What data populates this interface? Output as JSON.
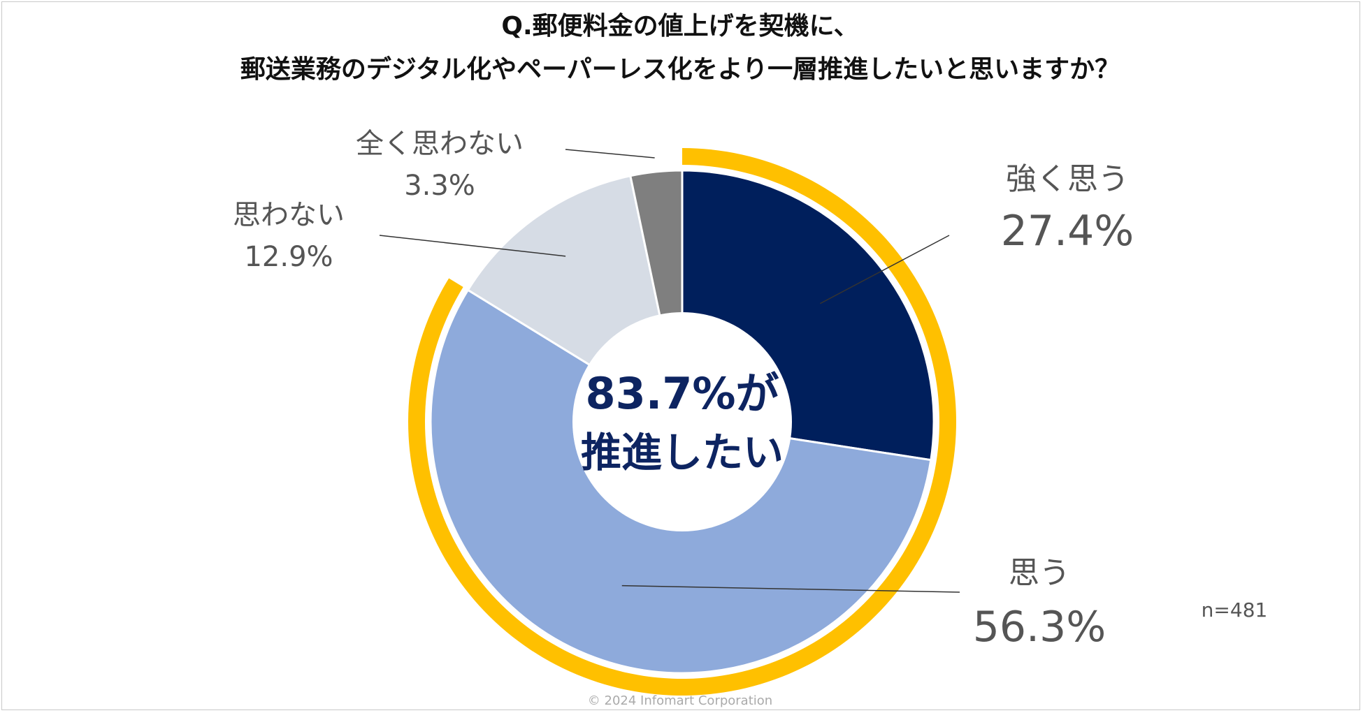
{
  "chart_data": {
    "type": "pie",
    "title": [
      "Q.郵便料金の値上げを契機に、",
      "郵送業務のデジタル化やペーパーレス化をより一層推進したいと思いますか？"
    ],
    "categories": [
      "強く思う",
      "思う",
      "思わない",
      "全く思わない"
    ],
    "values": [
      27.4,
      56.3,
      12.9,
      3.3
    ],
    "value_labels": [
      "27.4%",
      "56.3%",
      "12.9%",
      "3.3%"
    ],
    "colors": [
      "#001f5c",
      "#8eaadb",
      "#d6dce5",
      "#7f7f7f"
    ],
    "highlight": {
      "color": "#ffc000",
      "line1": "83.7%が",
      "line2": "推進したい"
    },
    "sample_note": "n=481"
  },
  "footer": {
    "copyright": "© 2024 Infomart Corporation"
  }
}
